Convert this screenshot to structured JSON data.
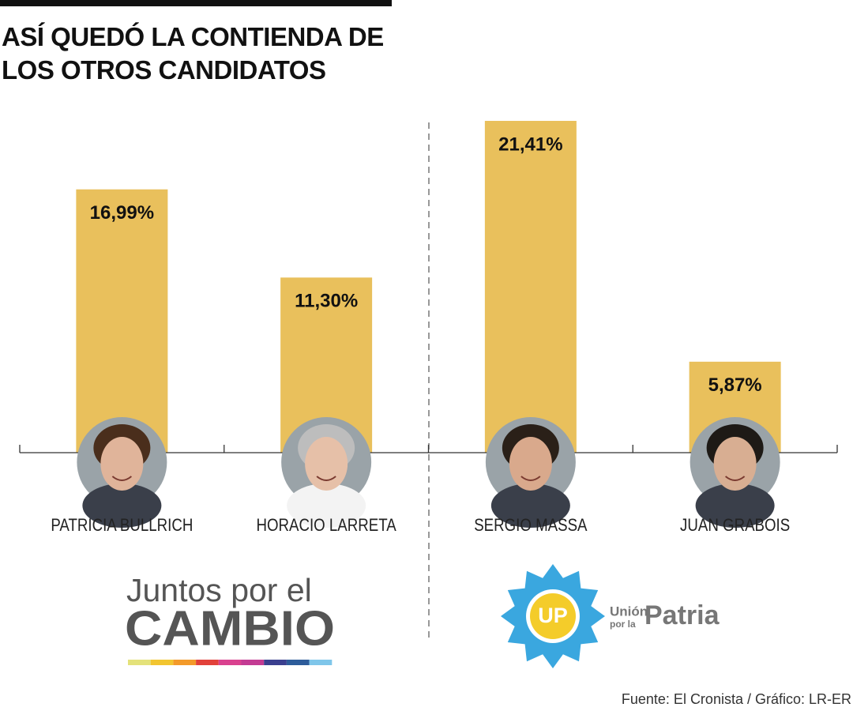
{
  "chart_data": {
    "type": "bar",
    "title": "ASÍ QUEDÓ LA CONTIENDA DE LOS OTROS CANDIDATOS",
    "categories": [
      "PATRICIA BULLRICH",
      "HORACIO LARRETA",
      "SERGIO MASSA",
      "JUAN GRABOIS"
    ],
    "values": [
      16.99,
      11.3,
      21.41,
      5.87
    ],
    "value_labels": [
      "16,99%",
      "11,30%",
      "21,41%",
      "5,87%"
    ],
    "color": "#e9c05c",
    "source": "Fuente: El Cronista / Gráfico: LR-ER"
  },
  "parties": [
    {
      "line1": "Juntos por el",
      "line2": "CAMBIO"
    },
    {
      "badge": "UP",
      "line1": "Unión",
      "line2": "por la",
      "line3": "Patria"
    }
  ]
}
